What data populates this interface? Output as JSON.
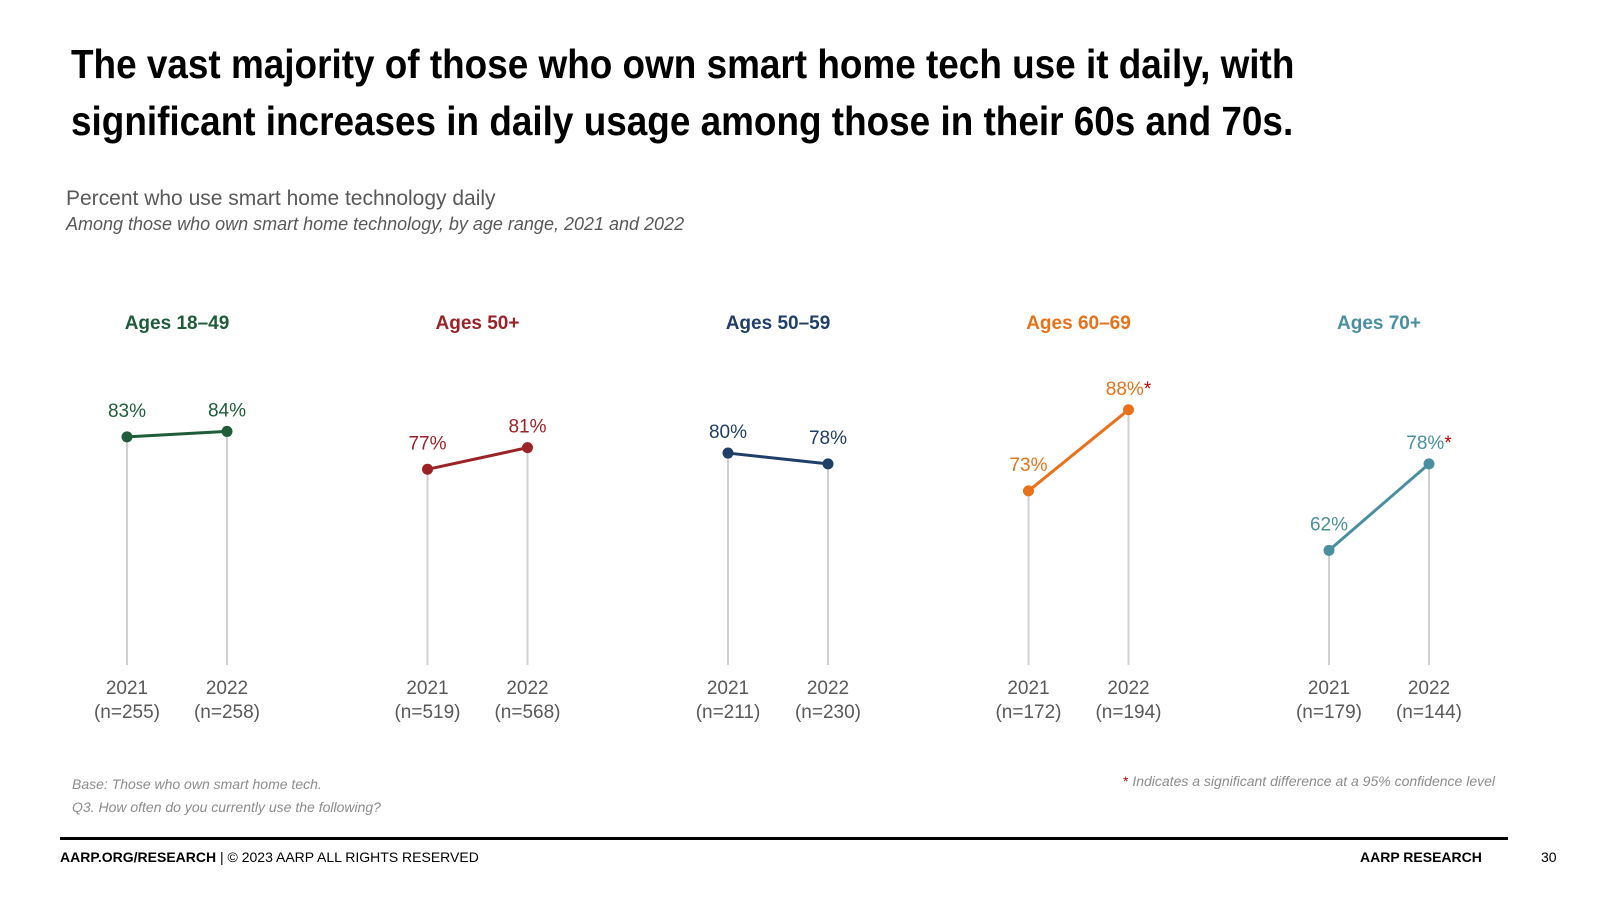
{
  "headline": "The vast majority of those who own smart home tech use it daily, with significant increases in daily usage among those in their 60s and 70s.",
  "chart_data": {
    "type": "line",
    "title": "Percent who use smart home technology daily",
    "subtitle": "Among those who own smart home technology, by age range, 2021 and 2022",
    "groups": [
      {
        "name": "Ages 18–49",
        "color": "#1e5c3a",
        "points": [
          {
            "year": "2021",
            "n": "(n=255)",
            "value": 83,
            "label": "83%",
            "sig": false
          },
          {
            "year": "2022",
            "n": "(n=258)",
            "value": 84,
            "label": "84%",
            "sig": false
          }
        ]
      },
      {
        "name": "Ages 50+",
        "color": "#9b2226",
        "points": [
          {
            "year": "2021",
            "n": "(n=519)",
            "value": 77,
            "label": "77%",
            "sig": false
          },
          {
            "year": "2022",
            "n": "(n=568)",
            "value": 81,
            "label": "81%",
            "sig": false
          }
        ]
      },
      {
        "name": "Ages 50–59",
        "color": "#1f3f68",
        "points": [
          {
            "year": "2021",
            "n": "(n=211)",
            "value": 80,
            "label": "80%",
            "sig": false
          },
          {
            "year": "2022",
            "n": "(n=230)",
            "value": 78,
            "label": "78%",
            "sig": false
          }
        ]
      },
      {
        "name": "Ages 60–69",
        "color": "#e8711a",
        "points": [
          {
            "year": "2021",
            "n": "(n=172)",
            "value": 73,
            "label": "73%",
            "sig": false
          },
          {
            "year": "2022",
            "n": "(n=194)",
            "value": 88,
            "label": "88%",
            "sig": true
          }
        ]
      },
      {
        "name": "Ages 70+",
        "color": "#4a8fa0",
        "points": [
          {
            "year": "2021",
            "n": "(n=179)",
            "value": 62,
            "label": "62%",
            "sig": false
          },
          {
            "year": "2022",
            "n": "(n=144)",
            "value": 78,
            "label": "78%",
            "sig": true
          }
        ]
      }
    ],
    "sig_marker": "*",
    "sig_color": "#c00000",
    "stem_color": "#d0d0d0",
    "ylim": [
      0,
      100
    ]
  },
  "footnotes": {
    "base": "Base: Those who own smart home tech.",
    "question": "Q3. How often do you currently use the following?",
    "sig_star": "*",
    "sig_text": "Indicates a significant difference at a 95% confidence level"
  },
  "footer": {
    "left_bold": "AARP.ORG/RESEARCH",
    "left_rest": " | © 2023 AARP ALL RIGHTS RESERVED",
    "right": "AARP RESEARCH",
    "page": "30"
  }
}
